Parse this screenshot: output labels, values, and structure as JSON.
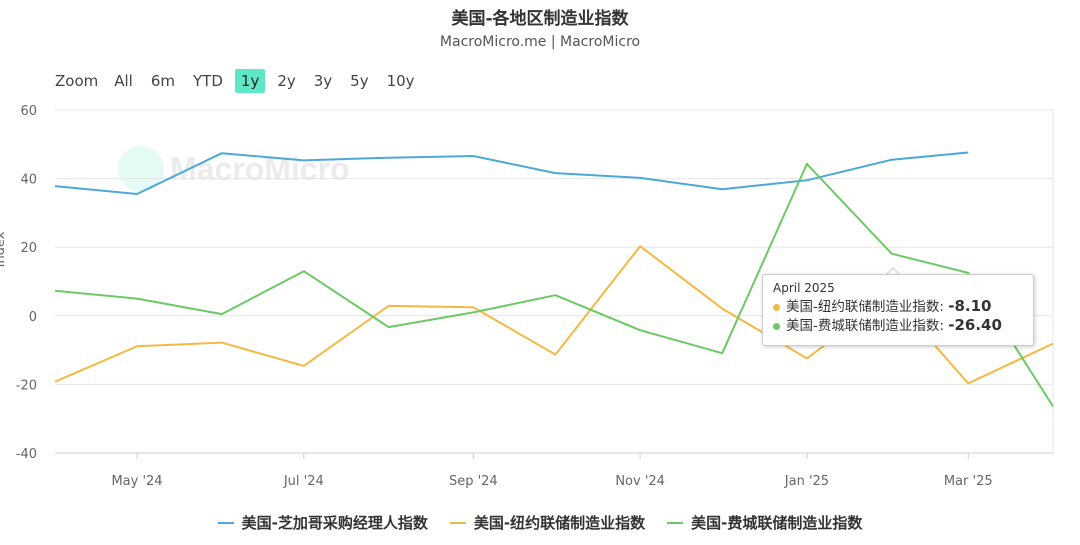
{
  "header": {
    "title": "美国-各地区制造业指数",
    "subtitle": "MacroMicro.me | MacroMicro"
  },
  "zoom": {
    "label": "Zoom",
    "buttons": [
      "All",
      "6m",
      "YTD",
      "1y",
      "2y",
      "3y",
      "5y",
      "10y"
    ],
    "active": "1y"
  },
  "watermark": {
    "text": "MacroMicro"
  },
  "tooltip": {
    "date": "April 2025",
    "rows": [
      {
        "label": "美国-纽约联储制造业指数:",
        "value": "-8.10",
        "color": "#f4b942"
      },
      {
        "label": "美国-费城联储制造业指数:",
        "value": "-26.40",
        "color": "#6cc965"
      }
    ]
  },
  "chart_data": {
    "type": "line",
    "ylabel": "Index",
    "ylim": [
      -40,
      60
    ],
    "yticks": [
      -40,
      -20,
      0,
      20,
      40,
      60
    ],
    "xlim": [
      "2024-04-01",
      "2025-04-01"
    ],
    "xticks": [
      {
        "label": "May '24",
        "date": "2024-05-01"
      },
      {
        "label": "Jul '24",
        "date": "2024-07-01"
      },
      {
        "label": "Sep '24",
        "date": "2024-09-01"
      },
      {
        "label": "Nov '24",
        "date": "2024-11-01"
      },
      {
        "label": "Jan '25",
        "date": "2025-01-01"
      },
      {
        "label": "Mar '25",
        "date": "2025-03-01"
      }
    ],
    "grid": true,
    "legend_position": "bottom",
    "series": [
      {
        "name": "美国-芝加哥采购经理人指数",
        "color": "#4da8da",
        "points": [
          [
            "2024-04-01",
            37.8
          ],
          [
            "2024-05-01",
            35.5
          ],
          [
            "2024-06-01",
            47.4
          ],
          [
            "2024-07-01",
            45.3
          ],
          [
            "2024-08-01",
            46.1
          ],
          [
            "2024-09-01",
            46.6
          ],
          [
            "2024-10-01",
            41.6
          ],
          [
            "2024-11-01",
            40.2
          ],
          [
            "2024-12-01",
            36.9
          ],
          [
            "2025-01-01",
            39.5
          ],
          [
            "2025-02-01",
            45.5
          ],
          [
            "2025-03-01",
            47.6
          ]
        ]
      },
      {
        "name": "美国-纽约联储制造业指数",
        "color": "#f4b942",
        "points": [
          [
            "2024-04-01",
            -19.2
          ],
          [
            "2024-05-01",
            -8.9
          ],
          [
            "2024-06-01",
            -7.8
          ],
          [
            "2024-07-01",
            -14.6
          ],
          [
            "2024-08-01",
            2.9
          ],
          [
            "2024-09-01",
            2.5
          ],
          [
            "2024-10-01",
            -11.3
          ],
          [
            "2024-11-01",
            20.3
          ],
          [
            "2024-12-01",
            2.1
          ],
          [
            "2025-01-01",
            -12.4
          ],
          [
            "2025-02-01",
            5.7
          ],
          [
            "2025-03-01",
            -19.7
          ],
          [
            "2025-04-01",
            -8.1
          ]
        ]
      },
      {
        "name": "美国-费城联储制造业指数",
        "color": "#6cc965",
        "points": [
          [
            "2024-04-01",
            7.3
          ],
          [
            "2024-05-01",
            5.0
          ],
          [
            "2024-06-01",
            0.5
          ],
          [
            "2024-07-01",
            13.0
          ],
          [
            "2024-08-01",
            -3.3
          ],
          [
            "2024-09-01",
            1.0
          ],
          [
            "2024-10-01",
            6.0
          ],
          [
            "2024-11-01",
            -4.2
          ],
          [
            "2024-12-01",
            -10.9
          ],
          [
            "2025-01-01",
            44.3
          ],
          [
            "2025-02-01",
            18.1
          ],
          [
            "2025-03-01",
            12.5
          ],
          [
            "2025-04-01",
            -26.4
          ]
        ]
      }
    ]
  }
}
